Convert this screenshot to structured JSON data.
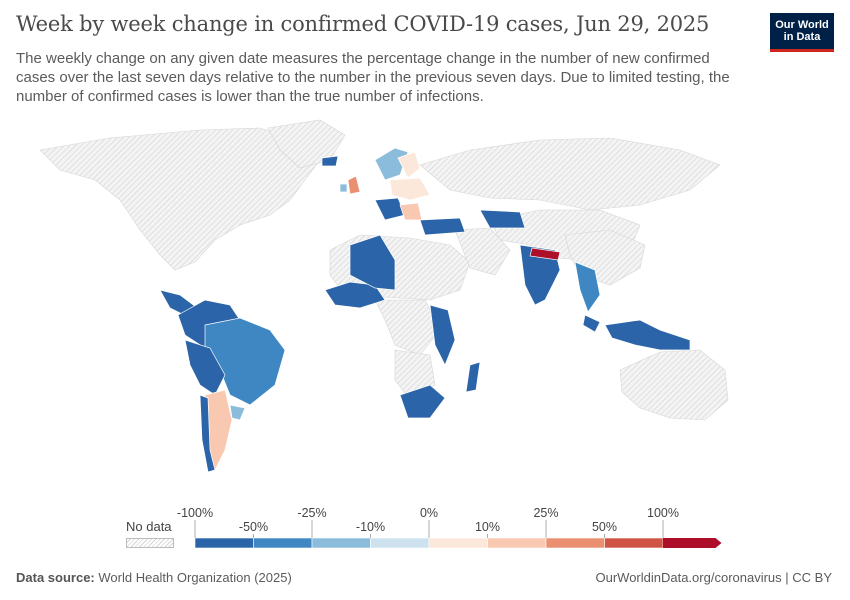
{
  "header": {
    "title": "Week by week change in confirmed COVID-19 cases, Jun 29, 2025",
    "subtitle": "The weekly change on any given date measures the percentage change in the number of new confirmed cases over the last seven days relative to the number in the previous seven days. Due to limited testing, the number of confirmed cases is lower than the true number of infections.",
    "logo_line1": "Our World",
    "logo_line2": "in Data"
  },
  "legend": {
    "no_data_label": "No data",
    "bins": [
      {
        "upper": "-50%",
        "color": "#2b64a8"
      },
      {
        "upper": "-25%",
        "color": "#3e87c2"
      },
      {
        "upper": "-10%",
        "color": "#8cbcdc"
      },
      {
        "upper": "0%",
        "color": "#cde1ef"
      },
      {
        "upper": "10%",
        "color": "#fce8da"
      },
      {
        "upper": "25%",
        "color": "#f8c8b0"
      },
      {
        "upper": "50%",
        "color": "#ea8f70"
      },
      {
        "upper": "100%",
        "color": "#d05445"
      },
      {
        "upper": "",
        "color": "#ad0f2a"
      }
    ],
    "top_labels": [
      "-100%",
      "-25%",
      "0%",
      "25%",
      "100%"
    ],
    "bottom_labels": [
      "-50%",
      "-10%",
      "10%",
      "50%"
    ]
  },
  "colors": {
    "no_data_fill": "#f4f4f4",
    "no_data_hatch": "#d2d2d2",
    "border": "#ffffff"
  },
  "footer": {
    "source_label": "Data source:",
    "source_value": "World Health Organization (2025)",
    "right": "OurWorldinData.org/coronavirus | CC BY"
  }
}
